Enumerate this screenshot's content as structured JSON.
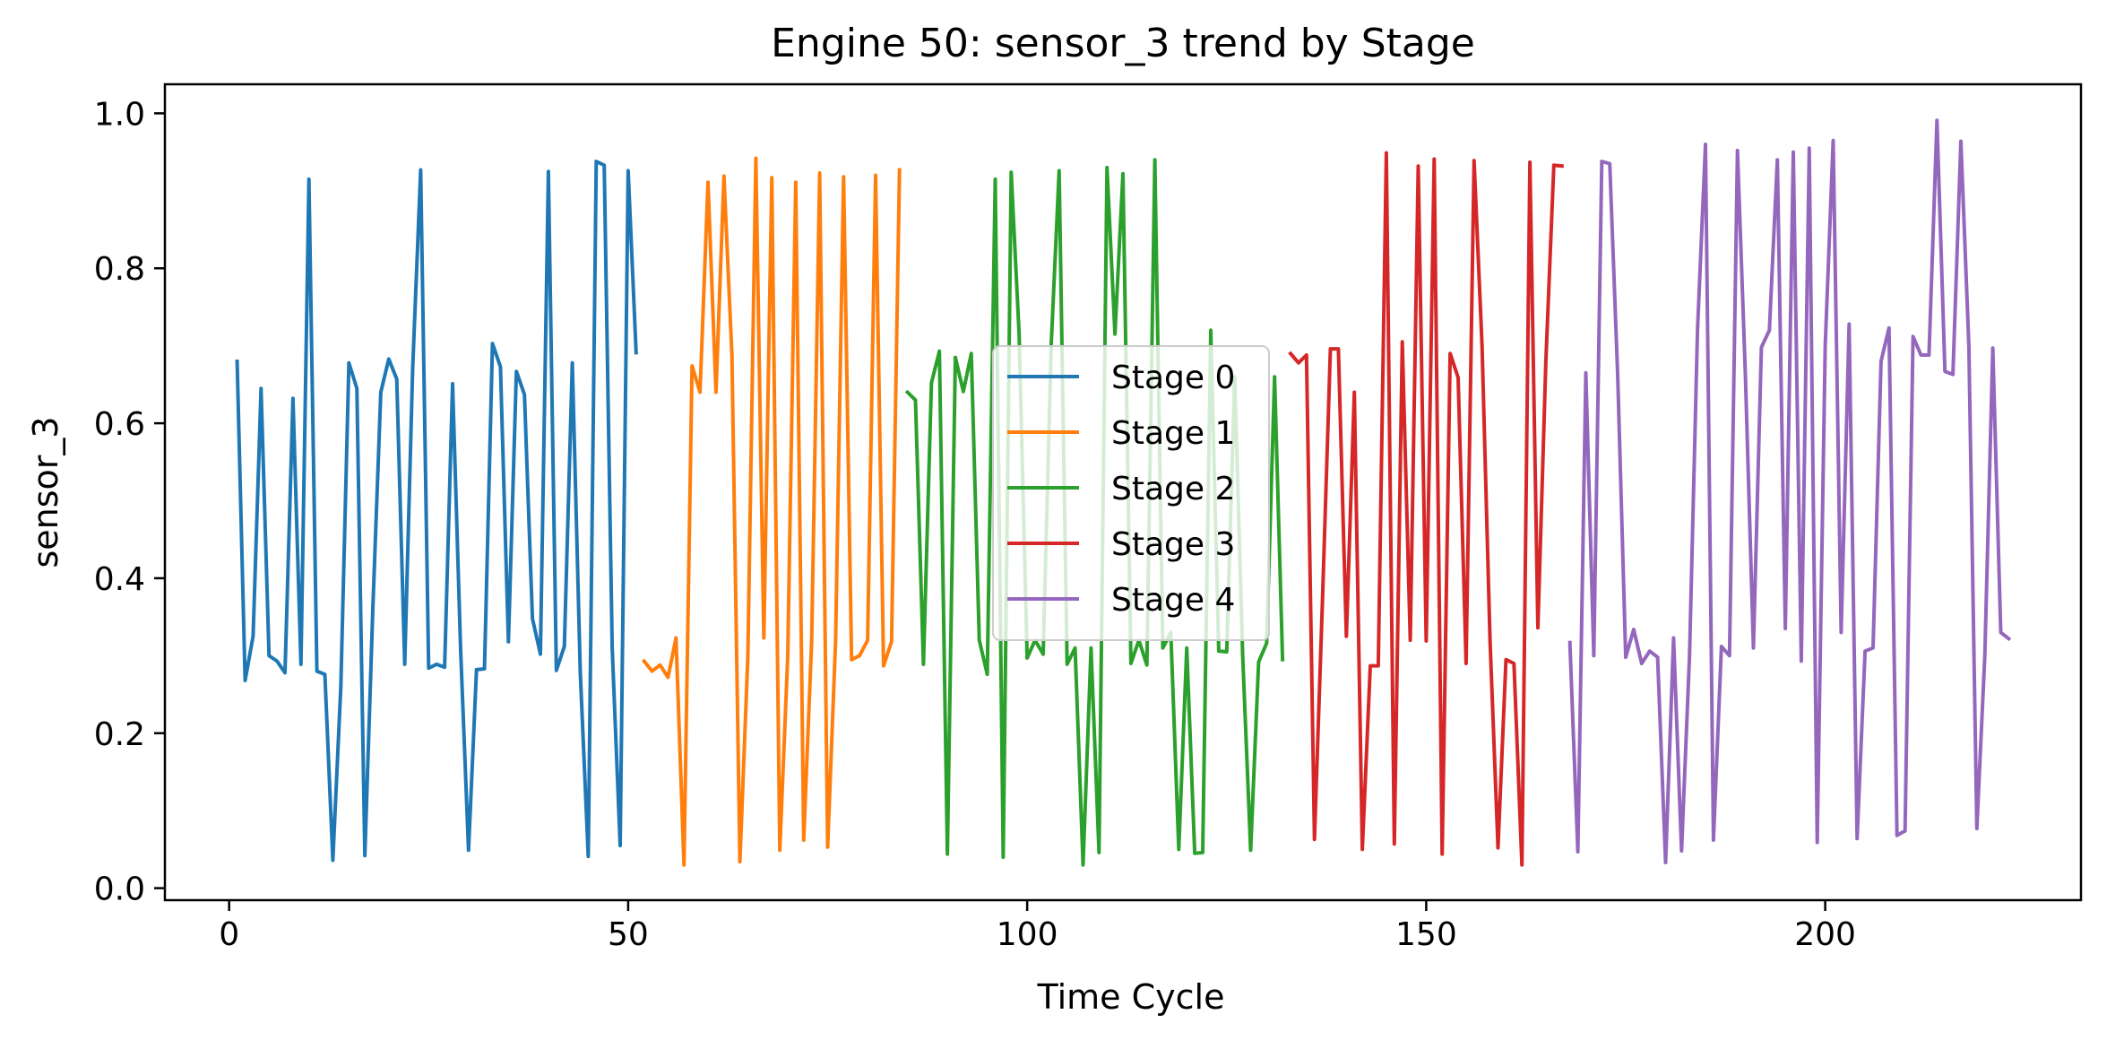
{
  "chart_data": {
    "type": "line",
    "title": "Engine 50: sensor_3 trend by Stage",
    "xlabel": "Time Cycle",
    "ylabel": "sensor_3",
    "xlim": [
      -8.05,
      232.05
    ],
    "ylim": [
      -0.0155,
      1.0375
    ],
    "xticks": [
      0,
      50,
      100,
      150,
      200
    ],
    "xtick_labels": [
      "0",
      "50",
      "100",
      "150",
      "200"
    ],
    "yticks": [
      0.0,
      0.2,
      0.4,
      0.6,
      0.8,
      1.0
    ],
    "ytick_labels": [
      "0.0",
      "0.2",
      "0.4",
      "0.6",
      "0.8",
      "1.0"
    ],
    "grid": false,
    "legend_position": "center",
    "series": [
      {
        "name": "Stage 0",
        "color": "#1f77b4",
        "x": [
          1,
          2,
          3,
          4,
          5,
          6,
          7,
          8,
          9,
          10,
          11,
          12,
          13,
          14,
          15,
          16,
          17,
          18,
          19,
          20,
          21,
          22,
          23,
          24,
          25,
          26,
          27,
          28,
          29,
          30,
          31,
          32,
          33,
          34,
          35,
          36,
          37,
          38,
          39,
          40,
          41,
          42,
          43,
          44,
          45,
          46,
          47,
          48,
          49,
          50,
          51
        ],
        "y": [
          0.68,
          0.268,
          0.325,
          0.645,
          0.3,
          0.293,
          0.278,
          0.632,
          0.289,
          0.915,
          0.28,
          0.276,
          0.036,
          0.26,
          0.678,
          0.645,
          0.042,
          0.36,
          0.64,
          0.683,
          0.657,
          0.289,
          0.672,
          0.927,
          0.284,
          0.289,
          0.285,
          0.651,
          0.31,
          0.049,
          0.282,
          0.283,
          0.703,
          0.673,
          0.318,
          0.667,
          0.637,
          0.348,
          0.302,
          0.925,
          0.281,
          0.312,
          0.678,
          0.278,
          0.041,
          0.938,
          0.933,
          0.31,
          0.055,
          0.926,
          0.691
        ]
      },
      {
        "name": "Stage 1",
        "color": "#ff7f0e",
        "x": [
          52,
          53,
          54,
          55,
          56,
          57,
          58,
          59,
          60,
          61,
          62,
          63,
          64,
          65,
          66,
          67,
          68,
          69,
          70,
          71,
          72,
          73,
          74,
          75,
          76,
          77,
          78,
          79,
          80,
          81,
          82,
          83,
          84
        ],
        "y": [
          0.293,
          0.28,
          0.288,
          0.272,
          0.323,
          0.03,
          0.674,
          0.64,
          0.911,
          0.64,
          0.919,
          0.688,
          0.034,
          0.3,
          0.942,
          0.323,
          0.917,
          0.049,
          0.3,
          0.911,
          0.062,
          0.32,
          0.923,
          0.053,
          0.32,
          0.918,
          0.295,
          0.3,
          0.32,
          0.92,
          0.287,
          0.318,
          0.927
        ]
      },
      {
        "name": "Stage 2",
        "color": "#2ca02c",
        "x": [
          85,
          86,
          87,
          88,
          89,
          90,
          91,
          92,
          93,
          94,
          95,
          96,
          97,
          98,
          99,
          100,
          101,
          102,
          103,
          104,
          105,
          106,
          107,
          108,
          109,
          110,
          111,
          112,
          113,
          114,
          115,
          116,
          117,
          118,
          119,
          120,
          121,
          122,
          123,
          124,
          125,
          126,
          127,
          128,
          129,
          130,
          131,
          132
        ],
        "y": [
          0.64,
          0.63,
          0.289,
          0.652,
          0.693,
          0.044,
          0.685,
          0.641,
          0.69,
          0.32,
          0.276,
          0.915,
          0.04,
          0.924,
          0.714,
          0.297,
          0.32,
          0.302,
          0.7,
          0.926,
          0.289,
          0.31,
          0.03,
          0.31,
          0.046,
          0.93,
          0.715,
          0.922,
          0.29,
          0.32,
          0.288,
          0.94,
          0.31,
          0.33,
          0.05,
          0.31,
          0.045,
          0.046,
          0.72,
          0.306,
          0.305,
          0.66,
          0.3,
          0.049,
          0.292,
          0.316,
          0.66,
          0.295
        ]
      },
      {
        "name": "Stage 3",
        "color": "#d62728",
        "x": [
          133,
          134,
          135,
          136,
          137,
          138,
          139,
          140,
          141,
          142,
          143,
          144,
          145,
          146,
          147,
          148,
          149,
          150,
          151,
          152,
          153,
          154,
          155,
          156,
          157,
          158,
          159,
          160,
          161,
          162,
          163,
          164,
          165,
          166,
          167
        ],
        "y": [
          0.69,
          0.678,
          0.688,
          0.063,
          0.37,
          0.696,
          0.696,
          0.325,
          0.64,
          0.05,
          0.287,
          0.287,
          0.949,
          0.057,
          0.705,
          0.32,
          0.932,
          0.319,
          0.941,
          0.044,
          0.69,
          0.659,
          0.29,
          0.939,
          0.7,
          0.32,
          0.052,
          0.295,
          0.29,
          0.03,
          0.937,
          0.336,
          0.68,
          0.933,
          0.932
        ]
      },
      {
        "name": "Stage 4",
        "color": "#9467bd",
        "x": [
          168,
          169,
          170,
          171,
          172,
          173,
          174,
          175,
          176,
          177,
          178,
          179,
          180,
          181,
          182,
          183,
          184,
          185,
          186,
          187,
          188,
          189,
          190,
          191,
          192,
          193,
          194,
          195,
          196,
          197,
          198,
          199,
          200,
          201,
          202,
          203,
          204,
          205,
          206,
          207,
          208,
          209,
          210,
          211,
          212,
          213,
          214,
          215,
          216,
          217,
          218,
          219,
          220,
          221,
          222,
          223
        ],
        "y": [
          0.317,
          0.047,
          0.665,
          0.3,
          0.938,
          0.935,
          0.66,
          0.298,
          0.334,
          0.29,
          0.306,
          0.298,
          0.033,
          0.323,
          0.048,
          0.3,
          0.72,
          0.96,
          0.062,
          0.312,
          0.3,
          0.952,
          0.66,
          0.31,
          0.698,
          0.72,
          0.94,
          0.335,
          0.95,
          0.293,
          0.955,
          0.059,
          0.7,
          0.965,
          0.33,
          0.728,
          0.064,
          0.306,
          0.31,
          0.68,
          0.723,
          0.068,
          0.074,
          0.712,
          0.688,
          0.688,
          0.991,
          0.667,
          0.663,
          0.964,
          0.7,
          0.077,
          0.3,
          0.697,
          0.33,
          0.322
        ]
      }
    ]
  }
}
